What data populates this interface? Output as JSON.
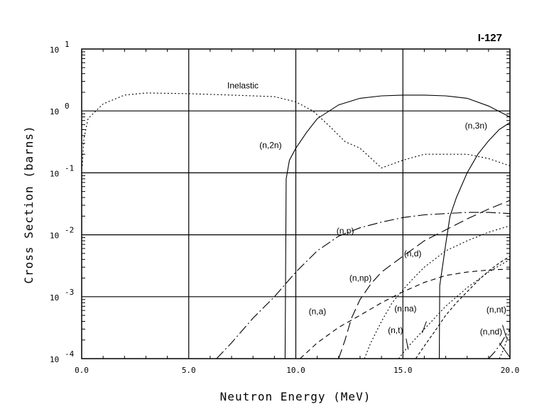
{
  "chart_data": {
    "type": "line",
    "title": "I-127",
    "xlabel": "Neutron Energy (MeV)",
    "ylabel": "Cross Section (barns)",
    "xscale": "linear",
    "yscale": "log",
    "xlim": [
      0.0,
      20.0
    ],
    "ylim": [
      0.0001,
      10
    ],
    "xticks": [
      "0.0",
      "5.0",
      "10.0",
      "15.0",
      "20.0"
    ],
    "yticks": [
      {
        "base": "10",
        "exp": "-4"
      },
      {
        "base": "10",
        "exp": "-3"
      },
      {
        "base": "10",
        "exp": "-2"
      },
      {
        "base": "10",
        "exp": "-1"
      },
      {
        "base": "10",
        "exp": "0"
      },
      {
        "base": "10",
        "exp": "1"
      }
    ],
    "grid": true,
    "series": [
      {
        "name": "Inelastic",
        "style": "dotted",
        "x": [
          0.03,
          0.1,
          0.3,
          0.6,
          1.0,
          2.0,
          3.0,
          5.0,
          7.0,
          9.0,
          10.0,
          10.8,
          11.5,
          12.3,
          13.0,
          14.0,
          15.0,
          16.0,
          17.0,
          18.0,
          19.0,
          20.0
        ],
        "y": [
          0.13,
          0.35,
          0.75,
          0.95,
          1.3,
          1.8,
          1.95,
          1.9,
          1.8,
          1.7,
          1.4,
          1.0,
          0.6,
          0.32,
          0.25,
          0.12,
          0.16,
          0.2,
          0.2,
          0.2,
          0.17,
          0.13
        ]
      },
      {
        "name": "(n,2n)",
        "style": "solid",
        "x": [
          9.5,
          9.55,
          9.7,
          10.0,
          10.5,
          11.0,
          12.0,
          13.0,
          14.0,
          15.0,
          16.0,
          17.0,
          18.0,
          19.0,
          20.0
        ],
        "y": [
          0.0001,
          0.08,
          0.16,
          0.25,
          0.45,
          0.75,
          1.25,
          1.6,
          1.75,
          1.8,
          1.8,
          1.75,
          1.6,
          1.2,
          0.8
        ]
      },
      {
        "name": "(n,3n)",
        "style": "solid",
        "x": [
          16.7,
          16.72,
          16.9,
          17.0,
          17.2,
          17.5,
          18.0,
          18.5,
          19.0,
          19.5,
          20.0
        ],
        "y": [
          0.0001,
          0.0015,
          0.004,
          0.007,
          0.02,
          0.04,
          0.1,
          0.2,
          0.33,
          0.5,
          0.65
        ]
      },
      {
        "name": "(n,p)",
        "style": "dashdot",
        "x": [
          6.3,
          7.0,
          8.0,
          9.0,
          10.0,
          11.0,
          12.0,
          13.0,
          14.0,
          15.0,
          16.0,
          17.0,
          18.0,
          19.0,
          20.0
        ],
        "y": [
          0.0001,
          0.00018,
          0.00045,
          0.001,
          0.0025,
          0.0055,
          0.0095,
          0.013,
          0.016,
          0.019,
          0.021,
          0.022,
          0.023,
          0.023,
          0.022
        ]
      },
      {
        "name": "(n,np)",
        "style": "longdash",
        "x": [
          12.0,
          12.3,
          12.6,
          13.0,
          13.5,
          14.0,
          15.0,
          16.0,
          17.0,
          18.0,
          19.0,
          20.0
        ],
        "y": [
          0.0001,
          0.0002,
          0.00045,
          0.0009,
          0.0016,
          0.0025,
          0.0045,
          0.008,
          0.012,
          0.018,
          0.026,
          0.036
        ]
      },
      {
        "name": "(n,d)",
        "style": "dotted",
        "x": [
          13.2,
          13.5,
          14.0,
          14.5,
          15.0,
          15.5,
          16.0,
          17.0,
          18.0,
          19.0,
          20.0
        ],
        "y": [
          0.0001,
          0.00018,
          0.0004,
          0.0008,
          0.0013,
          0.002,
          0.003,
          0.0055,
          0.008,
          0.011,
          0.014
        ]
      },
      {
        "name": "(n,a)",
        "style": "dashed",
        "x": [
          10.2,
          11.0,
          12.0,
          13.0,
          14.0,
          15.0,
          16.0,
          17.0,
          18.0,
          19.0,
          20.0
        ],
        "y": [
          0.0001,
          0.00018,
          0.00032,
          0.0005,
          0.0008,
          0.0012,
          0.0017,
          0.0022,
          0.0025,
          0.0027,
          0.0028
        ]
      },
      {
        "name": "(n,na)",
        "style": "shortdash",
        "x": [
          15.6,
          16.0,
          16.5,
          17.0,
          17.5,
          18.0,
          18.5,
          19.0,
          19.5,
          20.0
        ],
        "y": [
          0.0001,
          0.00016,
          0.00028,
          0.0005,
          0.0008,
          0.0012,
          0.0018,
          0.0026,
          0.0035,
          0.0045
        ]
      },
      {
        "name": "(n,t)",
        "style": "dotted",
        "x": [
          14.8,
          15.2,
          16.0,
          17.0,
          18.0,
          19.0,
          20.0
        ],
        "y": [
          0.0001,
          0.00015,
          0.0003,
          0.0007,
          0.0014,
          0.0025,
          0.004
        ]
      },
      {
        "name": "(n,nt)",
        "style": "dotted",
        "x": [
          19.5,
          19.7,
          19.85,
          20.0
        ],
        "y": [
          0.0001,
          0.00014,
          0.0002,
          0.0003
        ]
      },
      {
        "name": "(n,nd)",
        "style": "dashdot",
        "x": [
          19.0,
          19.3,
          19.6,
          19.8,
          20.0
        ],
        "y": [
          0.0001,
          0.00013,
          0.00018,
          0.00024,
          0.0003
        ]
      }
    ],
    "annotations": [
      {
        "text": "Inelastic",
        "at": [
          6.8,
          2.3
        ]
      },
      {
        "text": "(n,2n)",
        "at": [
          8.3,
          0.25
        ]
      },
      {
        "text": "(n,3n)",
        "at": [
          17.9,
          0.52
        ]
      },
      {
        "text": "(n,p)",
        "at": [
          11.9,
          0.0105
        ]
      },
      {
        "text": "(n,np)",
        "at": [
          12.5,
          0.0018
        ]
      },
      {
        "text": "(n,d)",
        "at": [
          15.05,
          0.0045
        ]
      },
      {
        "text": "(n,a)",
        "at": [
          10.6,
          0.00052
        ]
      },
      {
        "text": "(n,na)",
        "at": [
          14.6,
          0.00058
        ]
      },
      {
        "text": "(n,t)",
        "at": [
          14.3,
          0.00026
        ]
      },
      {
        "text": "(n,nt)",
        "at": [
          18.9,
          0.00056
        ]
      },
      {
        "text": "(n,nd)",
        "at": [
          18.6,
          0.000245
        ]
      }
    ]
  }
}
